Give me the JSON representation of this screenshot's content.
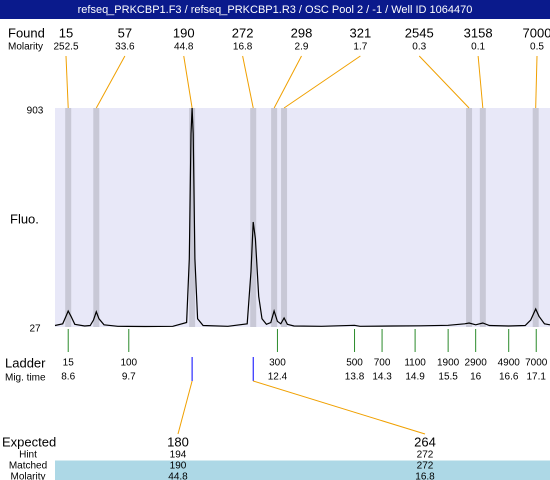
{
  "chart_data": {
    "type": "electropherogram",
    "title": "refseq_PRKCBP1.F3 / refseq_PRKCBP1.R3 / OSC Pool 2 / -1 / Well ID 1064470",
    "ylabel": "Fluo.",
    "ylim": [
      27,
      903
    ],
    "yticks": [
      27,
      903
    ],
    "xlim": [
      8.36,
      17.35
    ],
    "found_label": "Found",
    "found_molarity_label": "Molarity",
    "found": {
      "sizes": [
        15,
        57,
        190,
        272,
        298,
        321,
        2545,
        3158,
        7000
      ],
      "molarity": [
        252.5,
        33.6,
        44.8,
        16.8,
        2.9,
        1.7,
        0.3,
        0.1,
        0.5
      ],
      "x": [
        8.6,
        9.11,
        10.85,
        11.96,
        12.34,
        12.52,
        15.88,
        16.13,
        17.09
      ]
    },
    "ladder_label": "Ladder",
    "migtime_label": "Mig. time",
    "ladder": {
      "sizes": [
        15,
        100,
        300,
        500,
        700,
        1100,
        1900,
        2900,
        4900,
        7000
      ],
      "x": [
        8.6,
        9.7,
        12.4,
        13.8,
        14.3,
        14.9,
        15.5,
        16,
        16.6,
        17.1
      ]
    },
    "trace": {
      "color": "#000000",
      "x": [
        8.36,
        8.5,
        8.56,
        8.6,
        8.65,
        8.72,
        8.9,
        9.0,
        9.06,
        9.11,
        9.16,
        9.25,
        9.5,
        10.0,
        10.5,
        10.75,
        10.8,
        10.83,
        10.85,
        10.87,
        10.9,
        10.95,
        11.05,
        11.5,
        11.85,
        11.92,
        11.96,
        12.0,
        12.06,
        12.12,
        12.2,
        12.28,
        12.34,
        12.4,
        12.46,
        12.52,
        12.58,
        12.7,
        13.2,
        13.8,
        13.9,
        14.5,
        15.0,
        15.5,
        15.8,
        15.88,
        16.0,
        16.13,
        16.25,
        16.6,
        16.9,
        17.0,
        17.09,
        17.15,
        17.25,
        17.35
      ],
      "values": [
        33,
        40,
        70,
        91,
        70,
        38,
        31,
        33,
        55,
        88,
        60,
        36,
        30,
        29,
        30,
        45,
        300,
        800,
        903,
        800,
        300,
        60,
        33,
        30,
        40,
        250,
        447,
        380,
        150,
        60,
        38,
        45,
        91,
        50,
        40,
        63,
        38,
        31,
        30,
        34,
        30,
        31,
        32,
        34,
        40,
        43,
        36,
        43,
        33,
        31,
        33,
        55,
        99,
        70,
        40,
        36
      ]
    },
    "table": {
      "rows": [
        [
          "Expected",
          180,
          264
        ],
        [
          "Hint",
          194,
          272
        ],
        [
          "Matched",
          190,
          272
        ],
        [
          "Molarity",
          44.8,
          16.8
        ]
      ]
    }
  }
}
